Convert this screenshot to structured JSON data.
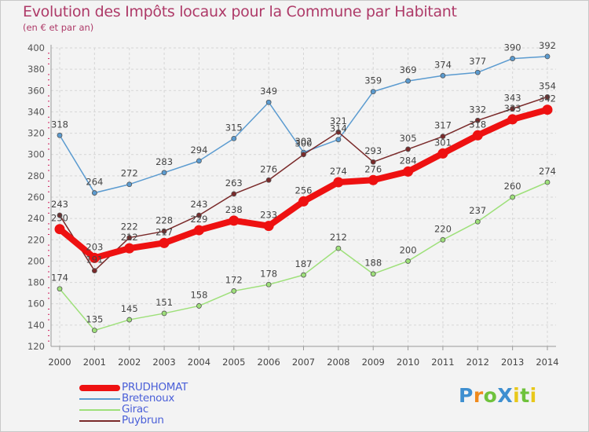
{
  "title": "Evolution des Impôts locaux pour la Commune par Habitant",
  "subtitle": "(en € et par an)",
  "logo": {
    "text": "ProXiti",
    "letters": [
      {
        "ch": "P",
        "color": "#3e8fd0"
      },
      {
        "ch": "r",
        "color": "#f08a1c"
      },
      {
        "ch": "o",
        "color": "#6fc23c"
      },
      {
        "ch": "X",
        "color": "#3e8fd0"
      },
      {
        "ch": "i",
        "color": "#e8c81a"
      },
      {
        "ch": "t",
        "color": "#6fc23c"
      },
      {
        "ch": "i",
        "color": "#e8c81a"
      }
    ]
  },
  "chart_data": {
    "type": "line",
    "title": "Evolution des Impôts locaux pour la Commune par Habitant",
    "subtitle": "(en € et par an)",
    "xlabel": "",
    "ylabel": "",
    "x": [
      "2000",
      "2001",
      "2002",
      "2003",
      "2004",
      "2005",
      "2006",
      "2007",
      "2008",
      "2009",
      "2010",
      "2011",
      "2012",
      "2013",
      "2014"
    ],
    "ylim": [
      120,
      400
    ],
    "yticks": [
      120,
      140,
      160,
      180,
      200,
      220,
      240,
      260,
      280,
      300,
      320,
      340,
      360,
      380,
      400
    ],
    "grid": true,
    "legend_position": "bottom-left",
    "series": [
      {
        "name": "PRUDHOMAT",
        "color": "#ee1111",
        "label_color": "#4a5fd8",
        "values": [
          230,
          203,
          212,
          217,
          229,
          238,
          233,
          256,
          274,
          276,
          284,
          301,
          318,
          333,
          342
        ]
      },
      {
        "name": "Bretenoux",
        "color": "#5b9bd0",
        "label_color": "#4a5fd8",
        "values": [
          318,
          264,
          272,
          283,
          294,
          315,
          349,
          302,
          314,
          359,
          369,
          374,
          377,
          390,
          392
        ],
        "data_labels": [
          "318",
          "264",
          "272",
          "283",
          "294",
          "315",
          "349",
          "302",
          "314",
          "359",
          "369",
          "374",
          "377",
          "390",
          "392"
        ]
      },
      {
        "name": "Girac",
        "color": "#9ee07a",
        "label_color": "#4a5fd8",
        "values": [
          174,
          135,
          145,
          151,
          158,
          172,
          178,
          187,
          212,
          188,
          200,
          220,
          237,
          260,
          274
        ]
      },
      {
        "name": "Puybrun",
        "color": "#7a2a2a",
        "label_color": "#4a5fd8",
        "values": [
          243,
          191,
          222,
          228,
          243,
          263,
          276,
          300,
          321,
          293,
          305,
          317,
          332,
          343,
          354
        ]
      }
    ]
  }
}
